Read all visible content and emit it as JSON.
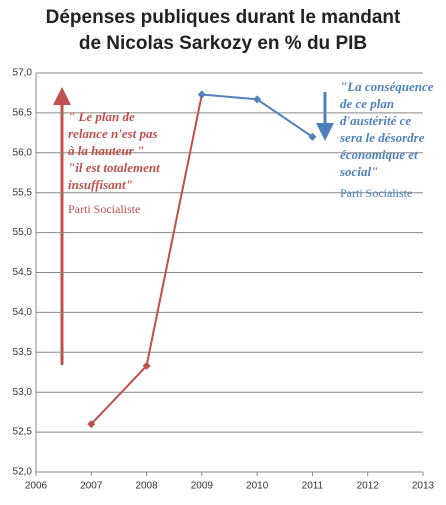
{
  "chart_data": {
    "type": "line",
    "title": [
      "Dépenses publiques durant le mandant",
      "de Nicolas Sarkozy en % du PIB"
    ],
    "x": [
      2007,
      2008,
      2009,
      2010,
      2011
    ],
    "series": [
      {
        "color": "#c0504d",
        "values": [
          52.6,
          53.33,
          56.73,
          null,
          null
        ]
      },
      {
        "color": "#4f81bd",
        "values": [
          null,
          null,
          56.73,
          56.67,
          56.2
        ]
      }
    ],
    "xlim": [
      2006,
      2013
    ],
    "xticks": [
      2006,
      2007,
      2008,
      2009,
      2010,
      2011,
      2012,
      2013
    ],
    "ylim": [
      52,
      57
    ],
    "yticks": [
      {
        "value": 52,
        "label": "52,0"
      },
      {
        "value": 52.5,
        "label": "52,5"
      },
      {
        "value": 53,
        "label": "53,0"
      },
      {
        "value": 53.5,
        "label": "53,5"
      },
      {
        "value": 54,
        "label": "54,0"
      },
      {
        "value": 54.5,
        "label": "54,5"
      },
      {
        "value": 55,
        "label": "55,0"
      },
      {
        "value": 55.5,
        "label": "55,5"
      },
      {
        "value": 56,
        "label": "56,0"
      },
      {
        "value": 56.5,
        "label": "56,5"
      },
      {
        "value": 57,
        "label": "57,0"
      }
    ],
    "grid": true,
    "annotations": [
      {
        "color": "#c0504d",
        "lines": [
          "\" Le plan de",
          "relance n'est pas",
          "à la hauteur \"",
          "\"il est totalement",
          "insuffisant\""
        ],
        "source": "Parti Socialiste"
      },
      {
        "color": "#4f81bd",
        "lines": [
          "\"La conséquence",
          "de ce plan",
          "d'austérité  ce",
          "sera le désordre",
          "économique et",
          "social\""
        ],
        "source": "Parti Socialiste"
      }
    ]
  }
}
